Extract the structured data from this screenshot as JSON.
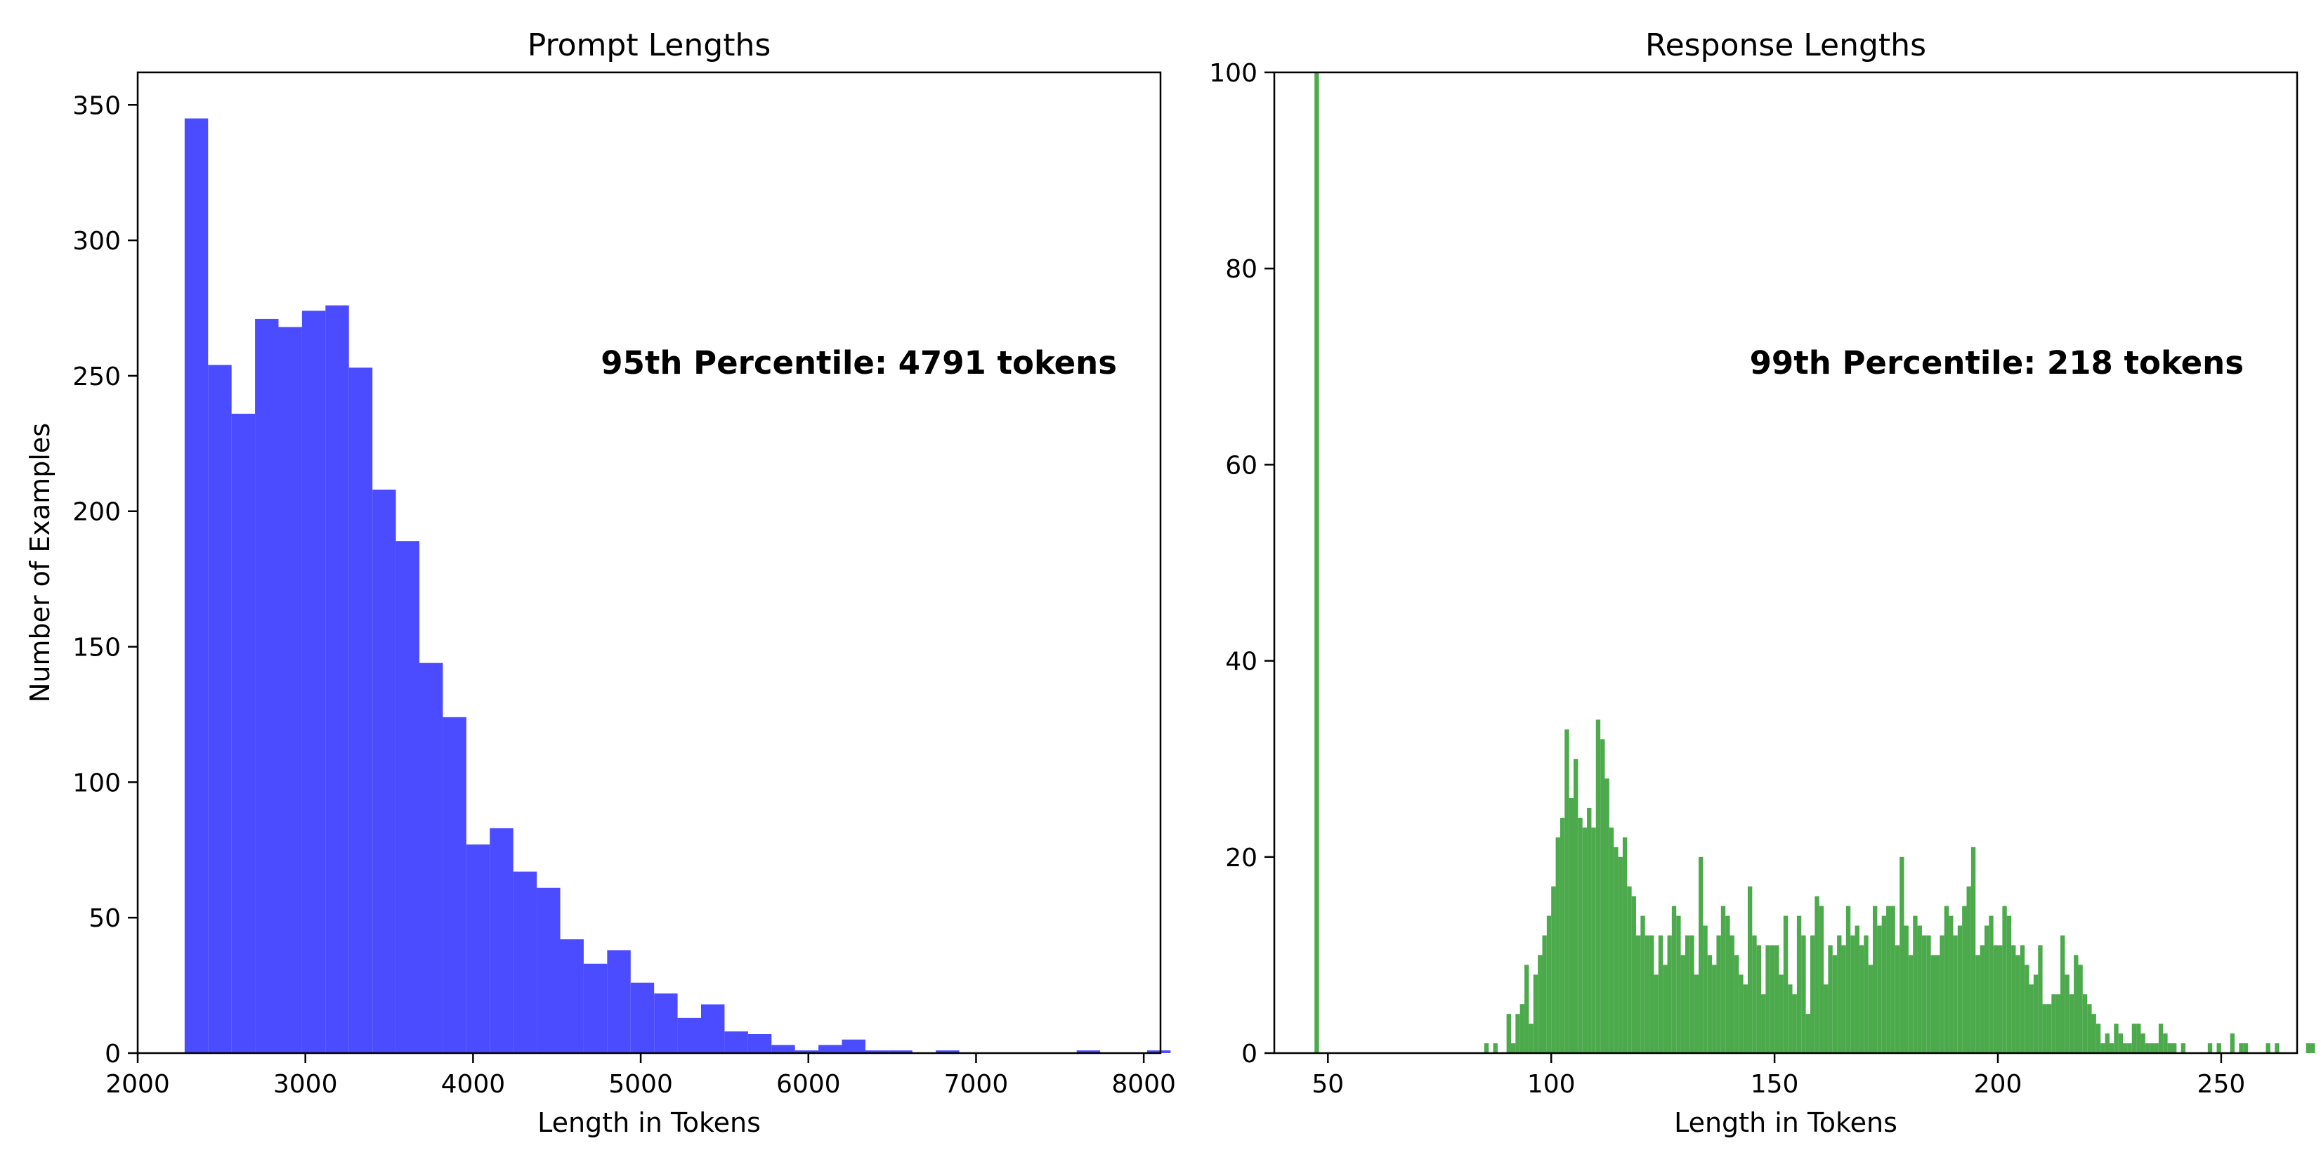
{
  "chart_data": [
    {
      "type": "bar",
      "title": "Prompt Lengths",
      "xlabel": "Length in Tokens",
      "ylabel": "Number of Examples",
      "xlim": [
        2000,
        8100
      ],
      "ylim": [
        0,
        362
      ],
      "xticks": [
        2000,
        3000,
        4000,
        5000,
        6000,
        7000,
        8000
      ],
      "yticks": [
        0,
        50,
        100,
        150,
        200,
        250,
        300,
        350
      ],
      "color": "#4b4bff",
      "annotation": "95th Percentile: 4791 tokens",
      "bin_start": 2280,
      "bin_width": 140,
      "values": [
        345,
        254,
        236,
        271,
        268,
        274,
        276,
        253,
        208,
        189,
        144,
        124,
        77,
        83,
        67,
        61,
        42,
        33,
        38,
        26,
        22,
        13,
        18,
        8,
        7,
        3,
        1,
        3,
        5,
        1,
        1,
        0,
        1,
        0,
        0,
        0,
        0,
        0,
        1,
        0,
        0,
        1
      ]
    },
    {
      "type": "bar",
      "title": "Response Lengths",
      "xlabel": "Length in Tokens",
      "ylabel": "",
      "xlim": [
        38,
        267
      ],
      "ylim": [
        0,
        100
      ],
      "xticks": [
        50,
        100,
        150,
        200,
        250
      ],
      "yticks": [
        0,
        20,
        40,
        60,
        80,
        100
      ],
      "color": "#4caa4c",
      "annotation": "99th Percentile: 218 tokens",
      "bin_start": 47,
      "bin_width": 1,
      "values": [
        100,
        0,
        0,
        0,
        0,
        0,
        0,
        0,
        0,
        0,
        0,
        0,
        0,
        0,
        0,
        0,
        0,
        0,
        0,
        0,
        0,
        0,
        0,
        0,
        0,
        0,
        0,
        0,
        0,
        0,
        0,
        0,
        0,
        0,
        0,
        0,
        0,
        0,
        1,
        0,
        1,
        0,
        0,
        4,
        1,
        4,
        5,
        9,
        3,
        8,
        10,
        12,
        14,
        17,
        22,
        24,
        33,
        26,
        30,
        24,
        23,
        25,
        23,
        34,
        32,
        28,
        23,
        21,
        20,
        22,
        17,
        16,
        12,
        14,
        12,
        12,
        8,
        12,
        9,
        12,
        15,
        14,
        10,
        12,
        12,
        8,
        20,
        13,
        10,
        9,
        12,
        15,
        14,
        12,
        10,
        8,
        7,
        17,
        12,
        11,
        6,
        11,
        11,
        11,
        8,
        14,
        7,
        6,
        14,
        12,
        4,
        12,
        16,
        15,
        7,
        11,
        10,
        12,
        11,
        15,
        12,
        13,
        11,
        12,
        9,
        15,
        13,
        14,
        15,
        15,
        11,
        20,
        13,
        10,
        14,
        13,
        12,
        12,
        10,
        10,
        12,
        15,
        14,
        12,
        13,
        15,
        17,
        21,
        10,
        11,
        13,
        14,
        11,
        11,
        15,
        14,
        11,
        10,
        11,
        9,
        7,
        8,
        11,
        5,
        5,
        6,
        6,
        12,
        8,
        6,
        10,
        9,
        6,
        5,
        4,
        3,
        1,
        2,
        1,
        3,
        2,
        1,
        1,
        3,
        3,
        2,
        1,
        1,
        1,
        3,
        2,
        1,
        1,
        0,
        1,
        0,
        0,
        0,
        0,
        0,
        1,
        0,
        1,
        0,
        0,
        2,
        0,
        1,
        1,
        0,
        0,
        0,
        0,
        1,
        0,
        1,
        0,
        0,
        0,
        0,
        0,
        0,
        1,
        1,
        0,
        0,
        0,
        0,
        0,
        0,
        0,
        0,
        1,
        1,
        1,
        2,
        1,
        0,
        0,
        0,
        0,
        0,
        0,
        1,
        1,
        1,
        0,
        0,
        0,
        0,
        0,
        0,
        0,
        0,
        0,
        0,
        1,
        1,
        3
      ]
    }
  ]
}
